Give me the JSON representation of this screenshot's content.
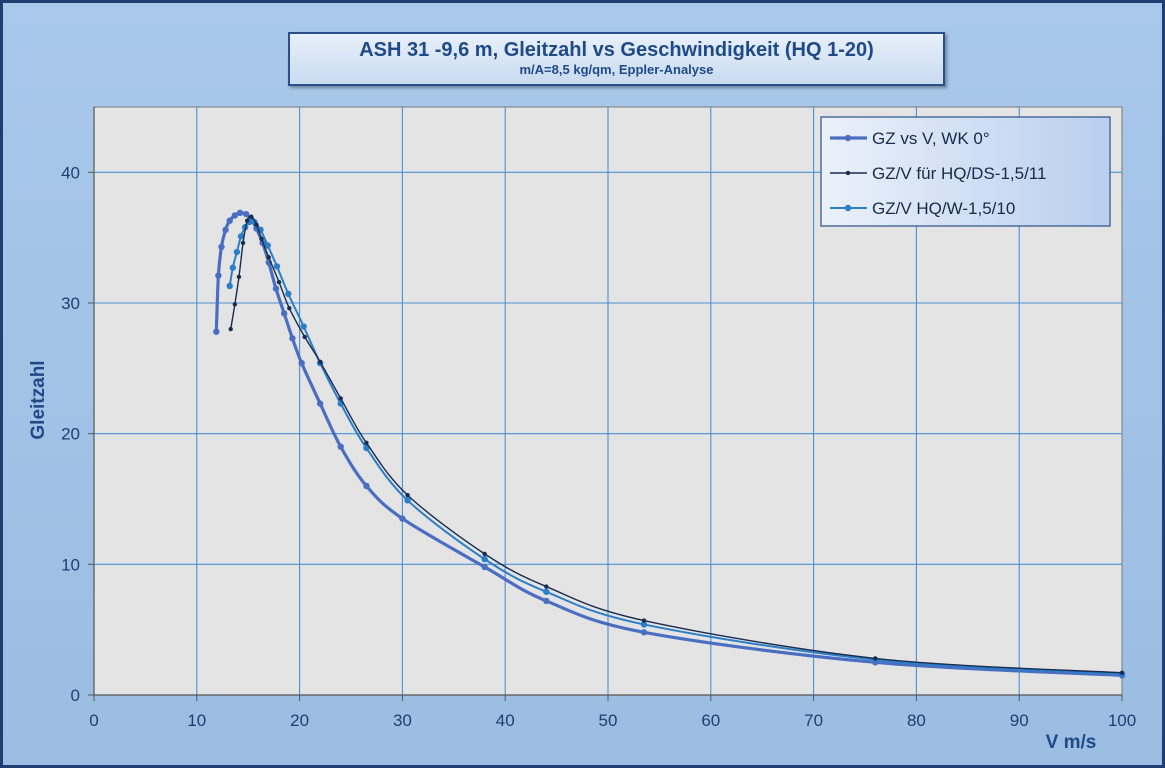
{
  "title": {
    "main": "ASH 31 -9,6 m, Gleitzahl vs Geschwindigkeit (HQ 1-20)",
    "sub": "m/A=8,5 kg/qm, Eppler-Analyse"
  },
  "chart_data": {
    "type": "line",
    "xlabel": "V m/s",
    "ylabel": "Gleitzahl",
    "xlim": [
      0,
      100
    ],
    "ylim": [
      0,
      45
    ],
    "xticks": [
      0,
      10,
      20,
      30,
      40,
      50,
      60,
      70,
      80,
      90,
      100
    ],
    "yticks": [
      0,
      10,
      20,
      30,
      40
    ],
    "grid": true,
    "legend_position": "top-right",
    "series": [
      {
        "name": "GZ vs V, WK 0°",
        "color": "#4a6fc2",
        "x": [
          11.9,
          12.1,
          12.4,
          12.8,
          13.2,
          13.7,
          14.2,
          14.8,
          15.3,
          15.8,
          16.4,
          17.0,
          17.7,
          18.5,
          19.3,
          20.2,
          22.0,
          24.0,
          26.5,
          30.0,
          38.0,
          44.0,
          53.5,
          76.0,
          100.0
        ],
        "y": [
          27.8,
          32.1,
          34.3,
          35.6,
          36.3,
          36.7,
          36.9,
          36.8,
          36.4,
          35.7,
          34.6,
          33.1,
          31.1,
          29.2,
          27.3,
          25.4,
          22.3,
          19.0,
          16.0,
          13.5,
          9.8,
          7.2,
          4.8,
          2.5,
          1.5
        ],
        "line_width": 3.2
      },
      {
        "name": "GZ/V für HQ/DS-1,5/11",
        "color": "#1a2c50",
        "x": [
          13.3,
          13.7,
          14.1,
          14.5,
          14.9,
          15.3,
          15.8,
          16.3,
          17.0,
          18.0,
          19.0,
          20.5,
          22.0,
          24.0,
          26.5,
          30.5,
          38.0,
          44.0,
          53.5,
          76.0,
          100.0
        ],
        "y": [
          28.0,
          29.9,
          32.0,
          34.6,
          36.3,
          36.6,
          36.0,
          34.9,
          33.5,
          31.6,
          29.6,
          27.4,
          25.5,
          22.7,
          19.3,
          15.3,
          10.8,
          8.3,
          5.7,
          2.8,
          1.7
        ],
        "line_width": 1.4
      },
      {
        "name": "GZ/V HQ/W-1,5/10",
        "color": "#2a7fc8",
        "x": [
          13.2,
          13.5,
          13.9,
          14.3,
          14.7,
          15.1,
          15.6,
          16.2,
          16.9,
          17.8,
          18.9,
          20.4,
          22.0,
          24.0,
          26.5,
          30.5,
          38.0,
          44.0,
          53.5,
          76.0,
          100.0
        ],
        "y": [
          31.3,
          32.7,
          33.9,
          35.1,
          35.8,
          36.2,
          36.2,
          35.6,
          34.4,
          32.8,
          30.7,
          28.2,
          25.4,
          22.3,
          18.9,
          14.9,
          10.4,
          7.9,
          5.4,
          2.7,
          1.6
        ],
        "line_width": 2.0
      }
    ]
  }
}
